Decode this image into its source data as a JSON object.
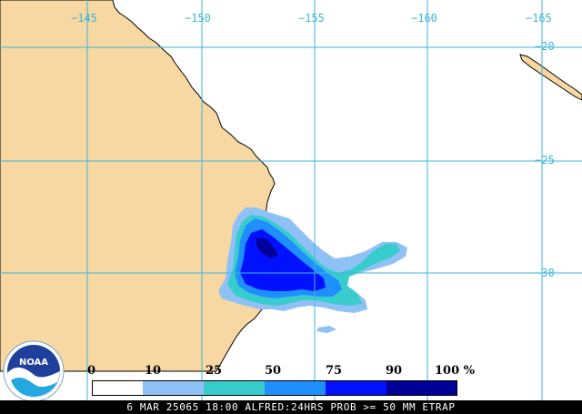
{
  "map": {
    "longitude_labels": [
      "−145",
      "−150",
      "−155",
      "−160",
      "−165"
    ],
    "latitude_labels": [
      "−20",
      "−25",
      "−30"
    ],
    "colors": {
      "land": "#f7d7a2",
      "ocean": "#ffffff",
      "grid": "#3fb6d8",
      "coast": "#000000"
    }
  },
  "legend": {
    "labels": [
      "0",
      "10",
      "25",
      "50",
      "75",
      "90",
      "100 %"
    ],
    "colors": [
      "#ffffff",
      "#8fc1f7",
      "#39cccc",
      "#1f8fff",
      "#0011ff",
      "#000099"
    ]
  },
  "logo": {
    "icon": "noaa-logo-icon",
    "text": "NOAA"
  },
  "caption": "6 MAR 25065 18:00 ALFRED:24HRS PROB >= 50 MM ETRAP"
}
